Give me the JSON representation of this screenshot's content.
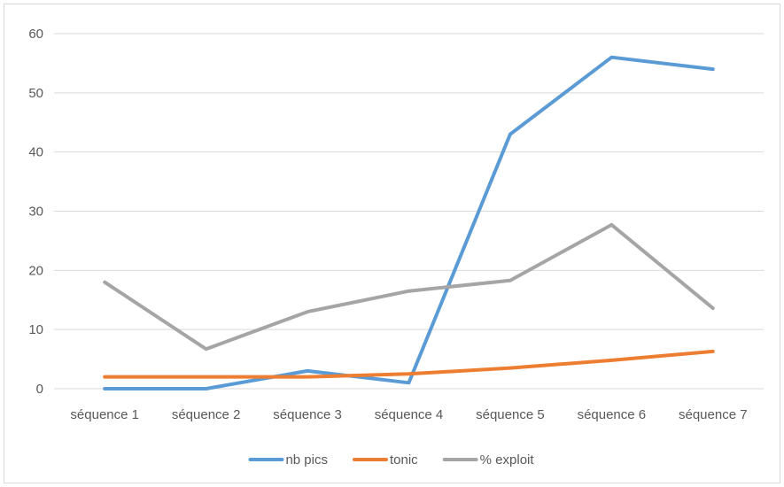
{
  "chart_data": {
    "type": "line",
    "title": "",
    "xlabel": "",
    "ylabel": "",
    "categories": [
      "séquence 1",
      "séquence 2",
      "séquence 3",
      "séquence 4",
      "séquence 5",
      "séquence 6",
      "séquence 7"
    ],
    "ylim": [
      0,
      60
    ],
    "yticks": [
      0,
      10,
      20,
      30,
      40,
      50,
      60
    ],
    "grid": true,
    "legend_position": "bottom",
    "series": [
      {
        "name": "nb pics",
        "color": "#5b9bd5",
        "values": [
          0,
          0,
          3,
          1,
          43,
          56,
          54
        ]
      },
      {
        "name": "tonic",
        "color": "#ed7d31",
        "values": [
          2,
          2,
          2,
          2.5,
          3.5,
          4.8,
          6.3
        ]
      },
      {
        "name": "% exploit",
        "color": "#a5a5a5",
        "values": [
          18,
          6.7,
          13,
          16.5,
          18.3,
          27.7,
          13.6
        ]
      }
    ]
  }
}
